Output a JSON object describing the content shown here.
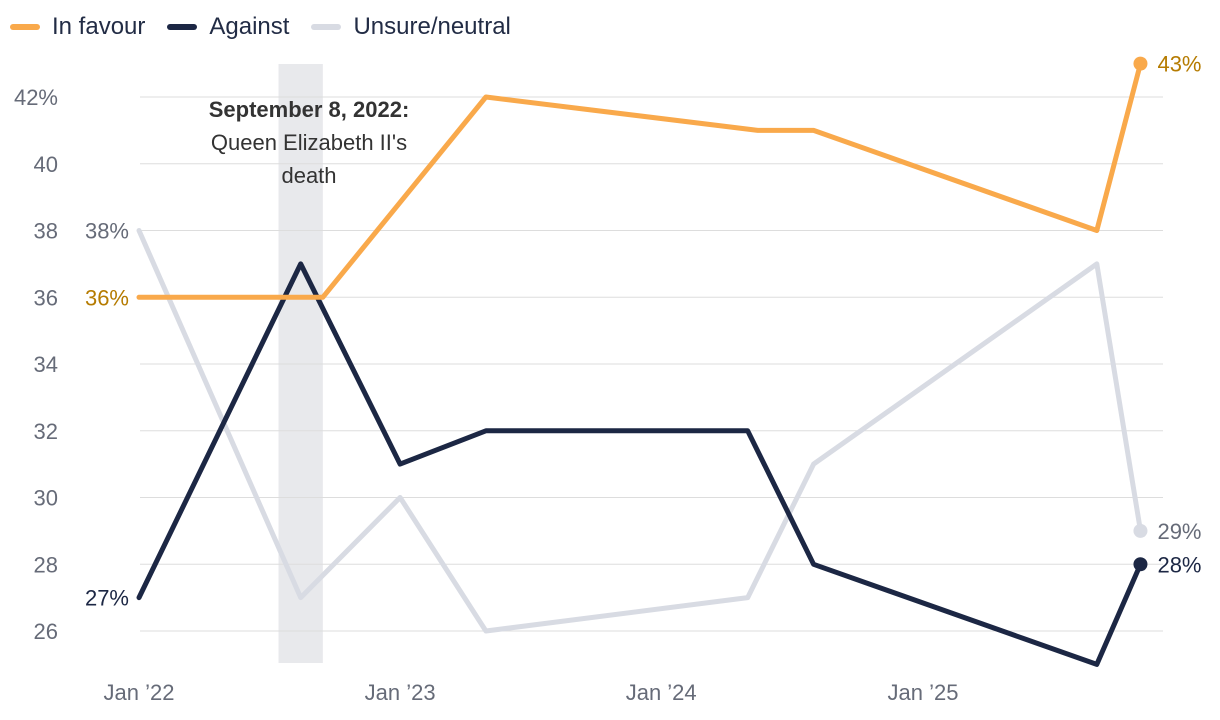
{
  "chart_data": {
    "type": "line",
    "title": "",
    "xlabel": "",
    "ylabel": "",
    "ylim": [
      25,
      44
    ],
    "y_ticks": [
      {
        "value": 42,
        "label": "42%"
      },
      {
        "value": 40,
        "label": "40"
      },
      {
        "value": 38,
        "label": "38"
      },
      {
        "value": 36,
        "label": "36"
      },
      {
        "value": 34,
        "label": "34"
      },
      {
        "value": 32,
        "label": "32"
      },
      {
        "value": 30,
        "label": "30"
      },
      {
        "value": 28,
        "label": "28"
      },
      {
        "value": 26,
        "label": "26"
      }
    ],
    "x_ticks": [
      {
        "value": "2022-01-01",
        "label": "Jan ’22"
      },
      {
        "value": "2023-01-01",
        "label": "Jan ’23"
      },
      {
        "value": "2024-01-01",
        "label": "Jan ’24"
      },
      {
        "value": "2025-01-01",
        "label": "Jan ’25"
      }
    ],
    "grid": true,
    "legend_position": "top-left",
    "series": [
      {
        "name": "In favour",
        "color": "#f9a94b",
        "label_color": "#b57b00",
        "points": [
          {
            "x": "2022-01-01",
            "y": 36
          },
          {
            "x": "2022-09-15",
            "y": 36
          },
          {
            "x": "2023-05-01",
            "y": 42
          },
          {
            "x": "2024-05-15",
            "y": 41
          },
          {
            "x": "2024-08-01",
            "y": 41
          },
          {
            "x": "2025-09-01",
            "y": 38
          },
          {
            "x": "2025-11-01",
            "y": 43
          }
        ],
        "start_label": "36%",
        "end_label": "43%"
      },
      {
        "name": "Against",
        "color": "#1c2744",
        "label_color": "#1c2744",
        "points": [
          {
            "x": "2022-01-01",
            "y": 27
          },
          {
            "x": "2022-08-15",
            "y": 37
          },
          {
            "x": "2023-01-01",
            "y": 31
          },
          {
            "x": "2023-05-01",
            "y": 32
          },
          {
            "x": "2024-05-01",
            "y": 32
          },
          {
            "x": "2024-08-01",
            "y": 28
          },
          {
            "x": "2025-09-01",
            "y": 25
          },
          {
            "x": "2025-11-01",
            "y": 28
          }
        ],
        "start_label": "27%",
        "end_label": "28%"
      },
      {
        "name": "Unsure/neutral",
        "color": "#d8dbe3",
        "label_color": "#666b78",
        "points": [
          {
            "x": "2022-01-01",
            "y": 38
          },
          {
            "x": "2022-08-15",
            "y": 27
          },
          {
            "x": "2023-01-01",
            "y": 30
          },
          {
            "x": "2023-05-01",
            "y": 26
          },
          {
            "x": "2024-05-01",
            "y": 27
          },
          {
            "x": "2024-08-01",
            "y": 31
          },
          {
            "x": "2025-09-01",
            "y": 37
          },
          {
            "x": "2025-11-01",
            "y": 29
          }
        ],
        "start_label": "38%",
        "end_label": "29%"
      }
    ],
    "annotation": {
      "x_start": "2022-07-15",
      "x_end": "2022-09-15",
      "date_text": "September 8, 2022:",
      "event_line1": "Queen Elizabeth II's",
      "event_line2": "death",
      "band_color": "#e8e9ec"
    }
  }
}
